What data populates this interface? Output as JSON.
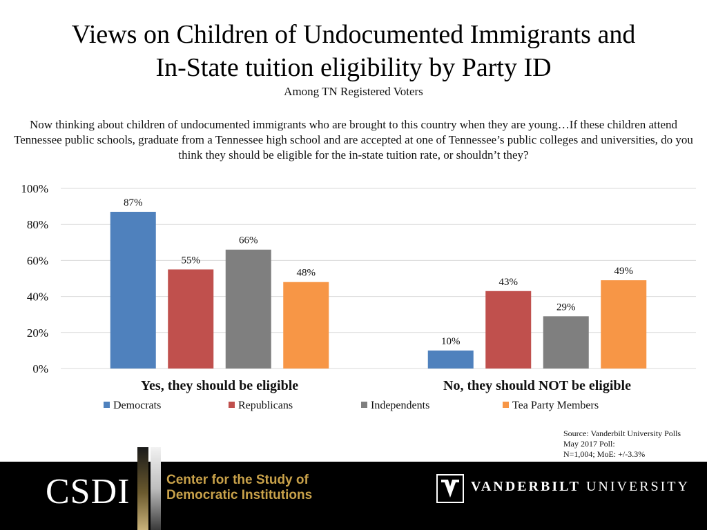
{
  "title_line1": "Views on Children of Undocumented Immigrants and",
  "title_line2": "In-State tuition eligibility by Party ID",
  "subtitle": "Among TN Registered Voters",
  "question": "Now thinking about children of undocumented immigrants who are brought to this country when they are young…If these children attend Tennessee public schools, graduate from a Tennessee high school and are accepted at one of Tennessee’s public colleges and universities, do you think they should be eligible for the in-state tuition rate, or shouldn’t they?",
  "chart_data": {
    "type": "bar",
    "categories": [
      "Yes, they should be eligible",
      "No, they should NOT be eligible"
    ],
    "series": [
      {
        "name": "Democrats",
        "values": [
          87,
          10
        ],
        "color": "#4f81bd"
      },
      {
        "name": "Republicans",
        "values": [
          55,
          43
        ],
        "color": "#c0504d"
      },
      {
        "name": "Independents",
        "values": [
          66,
          29
        ],
        "color": "#7f7f7f"
      },
      {
        "name": "Tea Party Members",
        "values": [
          48,
          49
        ],
        "color": "#f79646"
      }
    ],
    "ylim": [
      0,
      100
    ],
    "yticks": [
      "0%",
      "20%",
      "40%",
      "60%",
      "80%",
      "100%"
    ],
    "value_suffix": "%",
    "grid": true,
    "legend_position": "bottom"
  },
  "source": {
    "line1": "Source: Vanderbilt University Polls",
    "line2": "May 2017 Poll:",
    "line3": "N=1,004; MoE: +/-3.3%"
  },
  "footer": {
    "csdi": "CSDI",
    "center_line1": "Center for the Study of",
    "center_line2": "Democratic Institutions",
    "vu_bold": "VANDERBILT",
    "vu_regular": "UNIVERSITY"
  }
}
